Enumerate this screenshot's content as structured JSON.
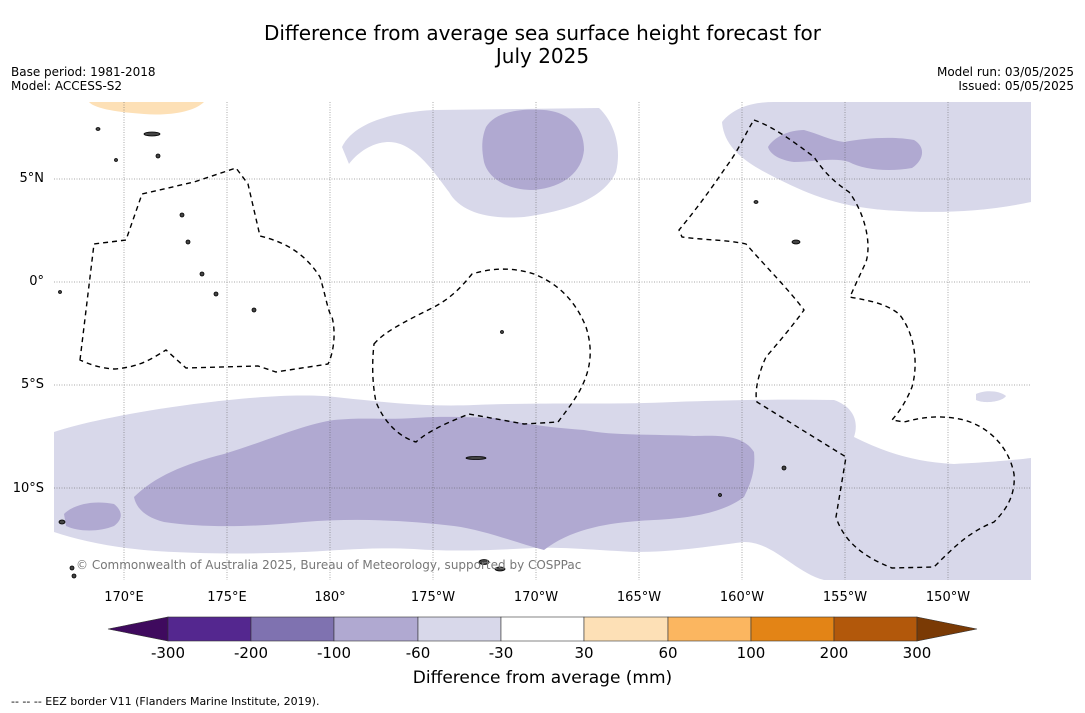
{
  "title_line1": "Difference from average sea surface height forecast for",
  "title_line2": "July 2025",
  "base_period": "Base period: 1981-2018",
  "model": "Model: ACCESS-S2",
  "model_run": "Model run: 03/05/2025",
  "issued": "Issued: 05/05/2025",
  "lat_labels": [
    "5°N",
    "0°",
    "5°S",
    "10°S"
  ],
  "lon_labels": [
    "170°E",
    "175°E",
    "180°",
    "175°W",
    "170°W",
    "165°W",
    "160°W",
    "155°W",
    "150°W"
  ],
  "copyright": "© Commonwealth of Australia 2025, Bureau of Meteorology, supported by COSPPac",
  "colorbar": {
    "title": "Difference from average (mm)",
    "tick_labels": [
      "-300",
      "-200",
      "-100",
      "-60",
      "-30",
      "30",
      "60",
      "100",
      "200",
      "300"
    ],
    "colors": [
      "#3f0a5e",
      "#54278f",
      "#7f72b0",
      "#b0a9d1",
      "#d8d8ea",
      "#ffffff",
      "#fde0b6",
      "#fbb660",
      "#e38416",
      "#b2580b",
      "#7a3a05"
    ]
  },
  "legend_note": "-- -- -- EEZ border V11 (Flanders Marine Institute, 2019)."
}
